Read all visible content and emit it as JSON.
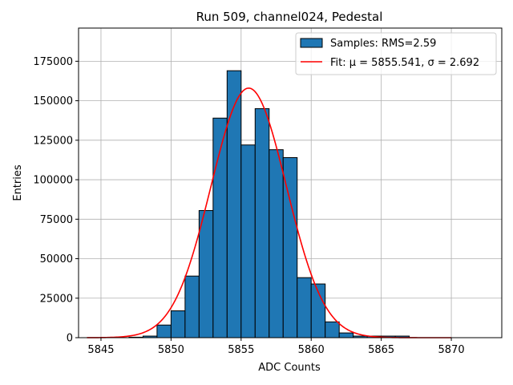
{
  "chart_data": {
    "type": "bar",
    "title": "Run 509, channel024, Pedestal",
    "xlabel": "ADC Counts",
    "ylabel": "Entries",
    "xlim": [
      5843.4,
      5873.6
    ],
    "ylim": [
      0,
      196000
    ],
    "grid": true,
    "x_ticks": [
      5845,
      5850,
      5855,
      5860,
      5865,
      5870
    ],
    "y_ticks": [
      0,
      25000,
      50000,
      75000,
      100000,
      125000,
      150000,
      175000
    ],
    "x_tick_labels": [
      "5845",
      "5850",
      "5855",
      "5860",
      "5865",
      "5870"
    ],
    "y_tick_labels": [
      "0",
      "25000",
      "50000",
      "75000",
      "100000",
      "125000",
      "150000",
      "175000"
    ],
    "bin_edges": [
      5845,
      5846,
      5847,
      5848,
      5849,
      5850,
      5851,
      5852,
      5853,
      5854,
      5855,
      5856,
      5857,
      5858,
      5859,
      5860,
      5861,
      5862,
      5863,
      5864,
      5865,
      5866,
      5867
    ],
    "bin_counts": [
      0,
      0,
      300,
      1000,
      8000,
      17000,
      39000,
      80500,
      139000,
      169000,
      122000,
      145000,
      119000,
      114000,
      38000,
      34000,
      10000,
      3000,
      1000,
      1000,
      1000,
      1000
    ],
    "fit": {
      "mu": 5855.541,
      "sigma": 2.692,
      "amplitude": 158000,
      "x_range": [
        5844,
        5870
      ]
    },
    "legend": {
      "placement": "top-right",
      "entries": [
        {
          "label": "Samples: RMS=2.59",
          "kind": "patch",
          "color": "#1f77b4"
        },
        {
          "label": "Fit: μ = 5855.541, σ = 2.692",
          "kind": "line",
          "color": "#ff0000"
        }
      ]
    },
    "colors": {
      "bar": "#1f77b4",
      "edge": "#000000",
      "fit": "#ff0000",
      "grid": "#b0b0b0"
    }
  }
}
